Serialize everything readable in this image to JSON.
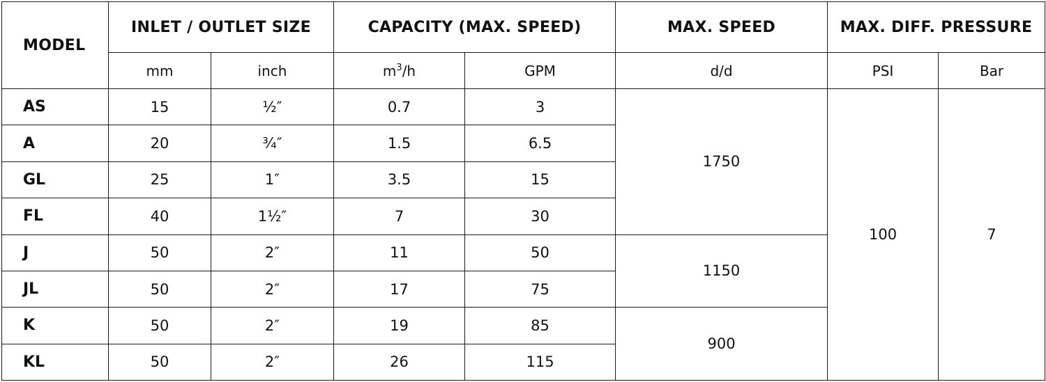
{
  "headers": {
    "model": "MODEL",
    "inlet_outlet_size": "INLET / OUTLET SIZE",
    "capacity": "CAPACITY (MAX. SPEED)",
    "max_speed": "MAX. SPEED",
    "max_diff_pressure": "MAX. DIFF. PRESSURE"
  },
  "units": {
    "mm": "mm",
    "inch": "inch",
    "m3h_base": "m",
    "m3h_sup": "3",
    "m3h_tail": "/h",
    "gpm": "GPM",
    "speed": "d/d",
    "psi": "PSI",
    "bar": "Bar"
  },
  "rows": [
    {
      "model": "AS",
      "mm": "15",
      "inch": "½″",
      "m3h": "0.7",
      "gpm": "3"
    },
    {
      "model": "A",
      "mm": "20",
      "inch": "¾″",
      "m3h": "1.5",
      "gpm": "6.5"
    },
    {
      "model": "GL",
      "mm": "25",
      "inch": "1″",
      "m3h": "3.5",
      "gpm": "15"
    },
    {
      "model": "FL",
      "mm": "40",
      "inch": "1½″",
      "m3h": "7",
      "gpm": "30"
    },
    {
      "model": "J",
      "mm": "50",
      "inch": "2″",
      "m3h": "11",
      "gpm": "50"
    },
    {
      "model": "JL",
      "mm": "50",
      "inch": "2″",
      "m3h": "17",
      "gpm": "75"
    },
    {
      "model": "K",
      "mm": "50",
      "inch": "2″",
      "m3h": "19",
      "gpm": "85"
    },
    {
      "model": "KL",
      "mm": "50",
      "inch": "2″",
      "m3h": "26",
      "gpm": "115"
    }
  ],
  "speeds": {
    "group1": "1750",
    "group2": "1150",
    "group3": "900"
  },
  "pressure": {
    "psi": "100",
    "bar": "7"
  }
}
